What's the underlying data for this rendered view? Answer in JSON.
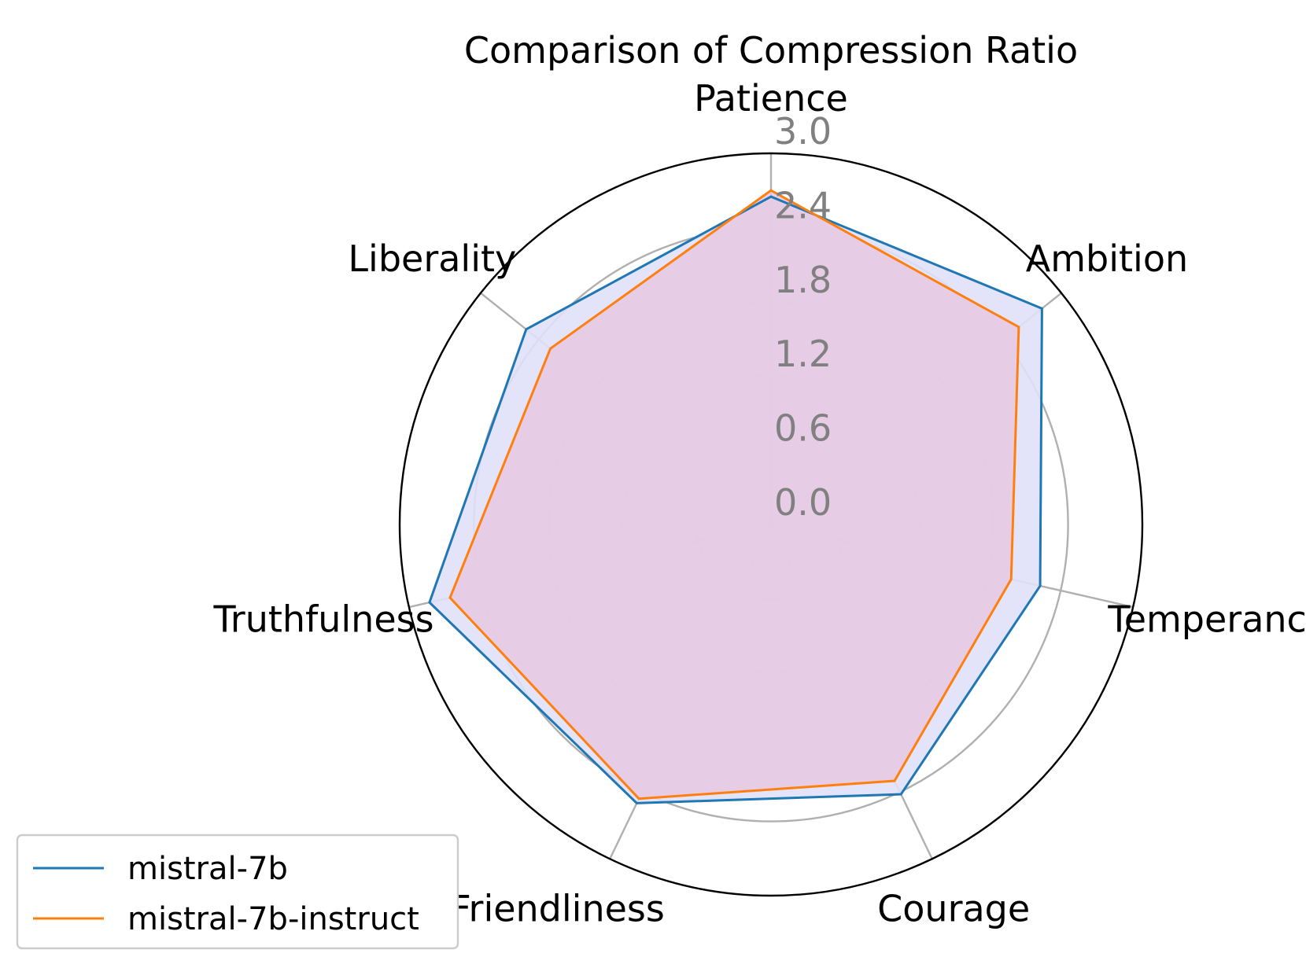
{
  "chart_data": {
    "type": "radar",
    "title": "Comparison of Compression Ratio",
    "categories": [
      "Patience",
      "Ambition",
      "Temperance",
      "Courage",
      "Friendliness",
      "Truthfulness",
      "Liberality"
    ],
    "radial_ticks": [
      "0.0",
      "0.6",
      "1.2",
      "1.8",
      "2.4",
      "3.0"
    ],
    "rlim": [
      0.0,
      3.0
    ],
    "grid": true,
    "legend_position": "lower-left",
    "series": [
      {
        "name": "mistral-7b",
        "color": "#1f77b4",
        "fill": "#e0e0fa",
        "values": [
          2.65,
          2.8,
          2.23,
          2.42,
          2.5,
          2.83,
          2.53
        ]
      },
      {
        "name": "mistral-7b-instruct",
        "color": "#ff7f0e",
        "fill": "#e6c8e0",
        "values": [
          2.7,
          2.56,
          1.99,
          2.3,
          2.46,
          2.66,
          2.28
        ]
      }
    ]
  }
}
